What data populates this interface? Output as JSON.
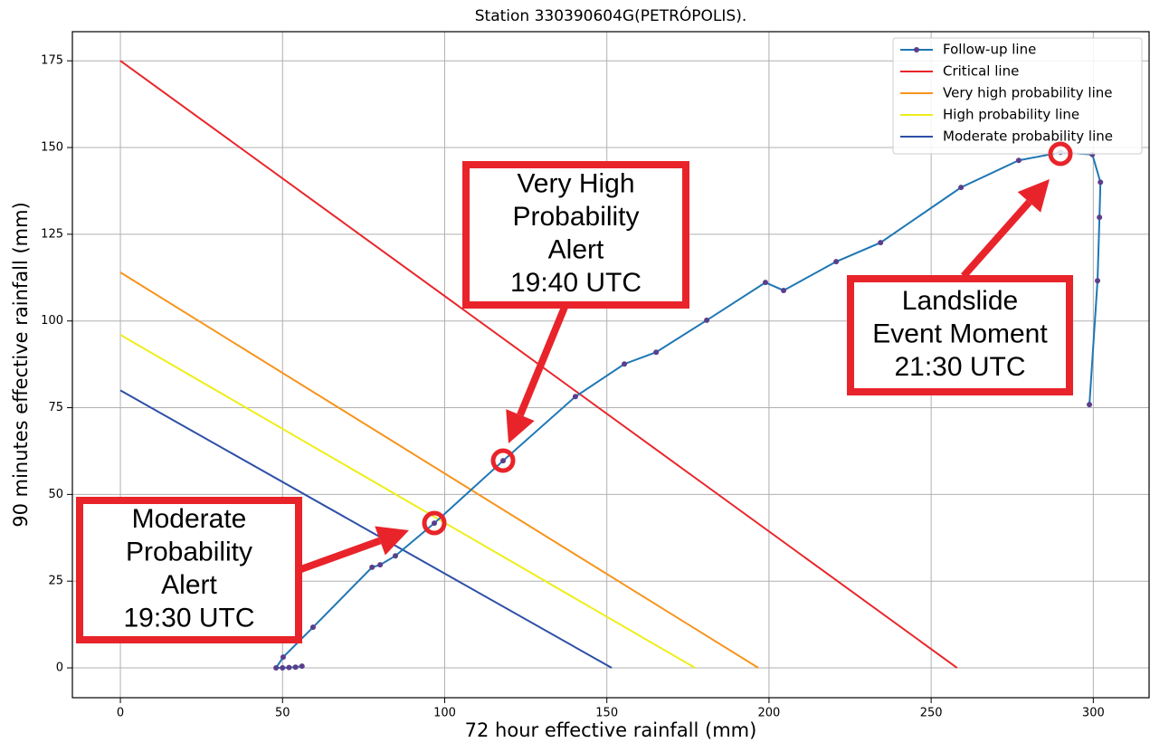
{
  "chart_data": {
    "type": "line",
    "title": "Station 330390604G(PETRÓPOLIS).",
    "x_label": "72 hour effective rainfall (mm)",
    "y_label": "90 minutes effective rainfall (mm)",
    "xlim": [
      -14.8,
      317.2
    ],
    "ylim": [
      -8.6,
      183.4
    ],
    "xticks": [
      0,
      50,
      100,
      150,
      200,
      250,
      300
    ],
    "yticks": [
      0,
      25,
      50,
      75,
      100,
      125,
      150,
      175
    ],
    "grid": true,
    "legend": "upper right",
    "series": [
      {
        "name": "Follow-up line",
        "color": "#1f77b4",
        "marker_color": "#5b3f8c",
        "x": [
          56,
          54,
          52,
          50,
          48,
          50.2,
          59.4,
          77.6,
          80.1,
          84.8,
          96.8,
          118,
          140.3,
          155.4,
          165.2,
          180.8,
          198.9,
          204.5,
          220.7,
          234.4,
          259.2,
          277,
          289.9,
          299.7,
          302.2,
          301.9,
          301.3,
          298.8
        ],
        "values": [
          0.5,
          0.2,
          0.1,
          0,
          0,
          3.1,
          11.7,
          29,
          29.7,
          32.3,
          41.7,
          59.7,
          78.2,
          87.6,
          91,
          100.2,
          111.1,
          108.8,
          117.1,
          122.6,
          138.5,
          146.3,
          148.6,
          148,
          140,
          129.9,
          111.6,
          75.9
        ]
      },
      {
        "name": "Critical line",
        "color": "#e8262a",
        "x": [
          0,
          258
        ],
        "values": [
          175,
          0
        ]
      },
      {
        "name": "Very high probability line",
        "color": "#f7941d",
        "x": [
          0,
          196.7
        ],
        "values": [
          114,
          0
        ]
      },
      {
        "name": "High probability line",
        "color": "#eeee1a",
        "x": [
          0,
          177.2
        ],
        "values": [
          96,
          0
        ]
      },
      {
        "name": "Moderate probability line",
        "color": "#2c4fa6",
        "x": [
          0,
          151.5
        ],
        "values": [
          80,
          0
        ]
      }
    ],
    "annotations": [
      {
        "lines": [
          "Very High",
          "Probability",
          "Alert",
          "19:40 UTC"
        ]
      },
      {
        "lines": [
          "Landslide",
          "Event Moment",
          "21:30 UTC"
        ]
      },
      {
        "lines": [
          "Moderate",
          "Probability",
          "Alert",
          "19:30 UTC"
        ]
      }
    ]
  }
}
